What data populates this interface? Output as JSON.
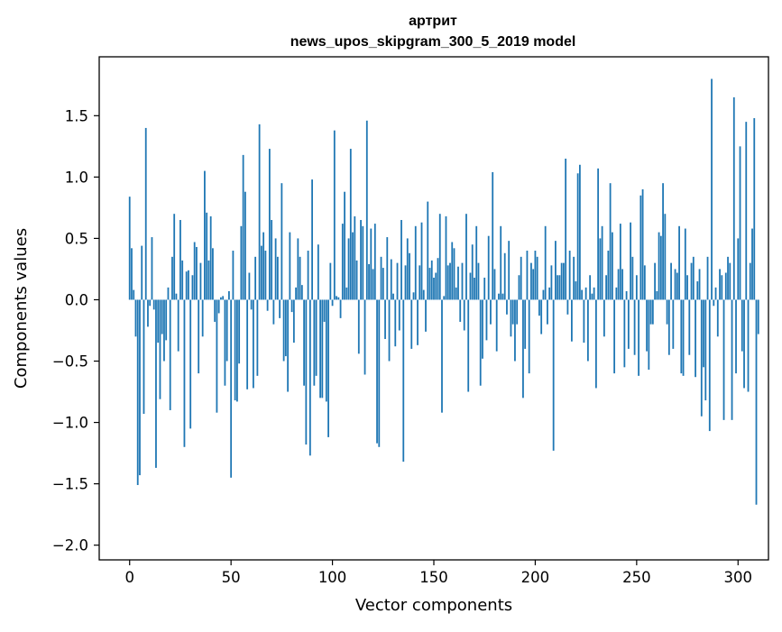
{
  "chart_data": {
    "type": "bar",
    "title": "артрит",
    "subtitle": "news_upos_skipgram_300_5_2019 model",
    "xlabel": "Vector components",
    "ylabel": "Components values",
    "xlim": [
      -15,
      315
    ],
    "ylim": [
      -2.12,
      1.98
    ],
    "xticks": [
      0,
      50,
      100,
      150,
      200,
      250,
      300
    ],
    "xtick_labels": [
      "0",
      "50",
      "100",
      "150",
      "200",
      "250",
      "300"
    ],
    "yticks": [
      -2.0,
      -1.5,
      -1.0,
      -0.5,
      0.0,
      0.5,
      1.0,
      1.5
    ],
    "ytick_labels": [
      "−2.0",
      "−1.5",
      "−1.0",
      "−0.5",
      "0.0",
      "0.5",
      "1.0",
      "1.5"
    ],
    "bar_color": "#1f77b4",
    "grid": false,
    "legend": "none",
    "x_start": 0,
    "values": [
      0.84,
      0.42,
      0.08,
      -0.3,
      -1.51,
      -1.43,
      0.44,
      -0.93,
      1.4,
      -0.22,
      -0.05,
      0.51,
      -0.08,
      -1.37,
      -0.35,
      -0.81,
      -0.28,
      -0.5,
      -0.33,
      0.1,
      -0.9,
      0.35,
      0.7,
      0.05,
      -0.42,
      0.65,
      0.32,
      -1.2,
      0.23,
      0.24,
      -1.05,
      0.2,
      0.47,
      0.43,
      -0.6,
      0.3,
      -0.3,
      1.05,
      0.71,
      0.32,
      0.68,
      0.42,
      -0.18,
      -0.92,
      -0.11,
      0.02,
      0.03,
      -0.7,
      -0.5,
      0.07,
      -1.45,
      0.4,
      -0.82,
      -0.83,
      -0.52,
      0.6,
      1.18,
      0.88,
      -0.73,
      0.22,
      -0.08,
      -0.72,
      0.35,
      -0.62,
      1.43,
      0.44,
      0.55,
      0.4,
      -0.09,
      1.23,
      0.65,
      -0.2,
      0.5,
      0.35,
      -0.15,
      0.95,
      -0.5,
      -0.46,
      -0.75,
      0.55,
      -0.1,
      -0.35,
      0.1,
      0.5,
      0.35,
      0.12,
      -0.7,
      -1.18,
      0.4,
      -1.27,
      0.98,
      -0.7,
      -0.62,
      0.45,
      -0.8,
      -0.8,
      -0.18,
      -0.83,
      -1.12,
      0.3,
      -0.05,
      1.38,
      0.03,
      0.02,
      -0.15,
      0.62,
      0.88,
      0.1,
      0.5,
      1.23,
      0.55,
      0.68,
      0.32,
      -0.44,
      0.65,
      0.6,
      -0.61,
      1.46,
      0.29,
      0.58,
      0.25,
      0.62,
      -1.17,
      -1.2,
      0.35,
      0.26,
      -0.32,
      0.51,
      -0.5,
      0.33,
      0.05,
      -0.38,
      0.3,
      -0.25,
      0.65,
      -1.32,
      0.28,
      0.5,
      0.38,
      -0.4,
      0.06,
      0.6,
      -0.37,
      0.28,
      0.63,
      0.08,
      -0.26,
      0.8,
      0.26,
      0.32,
      0.18,
      0.22,
      0.34,
      0.7,
      -0.92,
      0.03,
      0.68,
      0.28,
      0.3,
      0.47,
      0.42,
      0.1,
      0.27,
      -0.18,
      0.3,
      -0.25,
      0.7,
      -0.75,
      0.22,
      0.45,
      0.18,
      0.6,
      0.3,
      -0.7,
      -0.48,
      0.18,
      -0.33,
      0.52,
      -0.2,
      1.04,
      0.25,
      -0.42,
      0.05,
      0.6,
      0.05,
      0.38,
      -0.12,
      0.48,
      -0.3,
      -0.2,
      -0.5,
      -0.2,
      0.2,
      0.35,
      -0.8,
      -0.4,
      0.4,
      -0.6,
      0.3,
      0.25,
      0.4,
      0.35,
      -0.13,
      -0.28,
      0.08,
      0.6,
      -0.2,
      0.1,
      0.28,
      -1.23,
      0.48,
      0.2,
      0.2,
      0.3,
      0.3,
      1.15,
      -0.12,
      0.4,
      -0.34,
      0.35,
      0.15,
      1.03,
      1.1,
      0.08,
      -0.35,
      0.1,
      -0.5,
      0.2,
      0.05,
      0.1,
      -0.72,
      1.07,
      0.5,
      0.6,
      -0.3,
      0.2,
      0.4,
      0.95,
      0.55,
      -0.6,
      0.1,
      0.25,
      0.62,
      0.25,
      -0.55,
      0.07,
      -0.4,
      0.63,
      0.35,
      -0.45,
      0.2,
      -0.62,
      0.85,
      0.9,
      0.28,
      -0.42,
      -0.57,
      -0.2,
      -0.2,
      0.3,
      0.07,
      0.55,
      0.52,
      0.95,
      0.7,
      -0.2,
      -0.45,
      0.3,
      -0.4,
      0.25,
      0.22,
      0.6,
      -0.6,
      -0.62,
      0.58,
      0.2,
      -0.45,
      0.3,
      0.35,
      -0.63,
      0.15,
      0.25,
      -0.95,
      -0.55,
      -0.82,
      0.35,
      -1.07,
      1.8,
      -0.05,
      0.1,
      -0.3,
      0.25,
      0.2,
      -0.98,
      0.22,
      0.35,
      0.3,
      -0.98,
      1.65,
      -0.6,
      0.5,
      1.25,
      -0.42,
      -0.72,
      1.45,
      -0.75,
      0.3,
      0.58,
      1.48,
      -1.67,
      -0.28
    ]
  }
}
